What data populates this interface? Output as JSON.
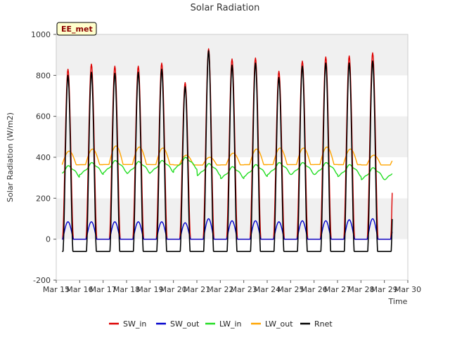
{
  "chart_data": {
    "type": "line",
    "title": "Solar Radiation",
    "xlabel": "Time",
    "ylabel": "Solar Radiation (W/m2)",
    "site_label": "EE_met",
    "ylim": [
      -200,
      1000
    ],
    "xlim": [
      15,
      30
    ],
    "grid": "horizontal bands",
    "legend_position": "bottom",
    "yticks": [
      -200,
      0,
      200,
      400,
      600,
      800,
      1000
    ],
    "xticks": [
      {
        "v": 15,
        "label": "Mar 15"
      },
      {
        "v": 16,
        "label": "Mar 16"
      },
      {
        "v": 17,
        "label": "Mar 17"
      },
      {
        "v": 18,
        "label": "Mar 18"
      },
      {
        "v": 19,
        "label": "Mar 19"
      },
      {
        "v": 20,
        "label": "Mar 20"
      },
      {
        "v": 21,
        "label": "Mar 21"
      },
      {
        "v": 22,
        "label": "Mar 22"
      },
      {
        "v": 23,
        "label": "Mar 23"
      },
      {
        "v": 24,
        "label": "Mar 24"
      },
      {
        "v": 25,
        "label": "Mar 25"
      },
      {
        "v": 26,
        "label": "Mar 26"
      },
      {
        "v": 27,
        "label": "Mar 27"
      },
      {
        "v": 28,
        "label": "Mar 28"
      },
      {
        "v": 29,
        "label": "Mar 29"
      },
      {
        "v": 30,
        "label": "Mar 30"
      }
    ],
    "x_start": 15.25,
    "x_end": 29.35,
    "day_peaks": [
      {
        "day": 15,
        "sw_in_peak": 830,
        "sw_out_peak": 85,
        "rnet_peak": 800,
        "lw_in_mean": 330,
        "lw_out_peak": 430
      },
      {
        "day": 16,
        "sw_in_peak": 855,
        "sw_out_peak": 85,
        "rnet_peak": 815,
        "lw_in_mean": 345,
        "lw_out_peak": 440
      },
      {
        "day": 17,
        "sw_in_peak": 845,
        "sw_out_peak": 85,
        "rnet_peak": 810,
        "lw_in_mean": 355,
        "lw_out_peak": 455
      },
      {
        "day": 18,
        "sw_in_peak": 845,
        "sw_out_peak": 85,
        "rnet_peak": 815,
        "lw_in_mean": 350,
        "lw_out_peak": 450
      },
      {
        "day": 19,
        "sw_in_peak": 860,
        "sw_out_peak": 85,
        "rnet_peak": 830,
        "lw_in_mean": 355,
        "lw_out_peak": 445
      },
      {
        "day": 20,
        "sw_in_peak": 765,
        "sw_out_peak": 80,
        "rnet_peak": 745,
        "lw_in_mean": 370,
        "lw_out_peak": 410
      },
      {
        "day": 21,
        "sw_in_peak": 930,
        "sw_out_peak": 100,
        "rnet_peak": 920,
        "lw_in_mean": 340,
        "lw_out_peak": 400
      },
      {
        "day": 22,
        "sw_in_peak": 880,
        "sw_out_peak": 90,
        "rnet_peak": 850,
        "lw_in_mean": 325,
        "lw_out_peak": 420
      },
      {
        "day": 23,
        "sw_in_peak": 885,
        "sw_out_peak": 90,
        "rnet_peak": 860,
        "lw_in_mean": 335,
        "lw_out_peak": 440
      },
      {
        "day": 24,
        "sw_in_peak": 820,
        "sw_out_peak": 85,
        "rnet_peak": 790,
        "lw_in_mean": 345,
        "lw_out_peak": 445
      },
      {
        "day": 25,
        "sw_in_peak": 870,
        "sw_out_peak": 90,
        "rnet_peak": 845,
        "lw_in_mean": 345,
        "lw_out_peak": 445
      },
      {
        "day": 26,
        "sw_in_peak": 890,
        "sw_out_peak": 90,
        "rnet_peak": 860,
        "lw_in_mean": 345,
        "lw_out_peak": 450
      },
      {
        "day": 27,
        "sw_in_peak": 895,
        "sw_out_peak": 95,
        "rnet_peak": 860,
        "lw_in_mean": 335,
        "lw_out_peak": 440
      },
      {
        "day": 28,
        "sw_in_peak": 910,
        "sw_out_peak": 100,
        "rnet_peak": 870,
        "lw_in_mean": 320,
        "lw_out_peak": 410
      }
    ],
    "series": [
      {
        "name": "SW_in",
        "color": "#dd0000"
      },
      {
        "name": "SW_out",
        "color": "#0000cc"
      },
      {
        "name": "LW_in",
        "color": "#22dd22"
      },
      {
        "name": "LW_out",
        "color": "#ffa500"
      },
      {
        "name": "Rnet",
        "color": "#000000"
      }
    ]
  }
}
